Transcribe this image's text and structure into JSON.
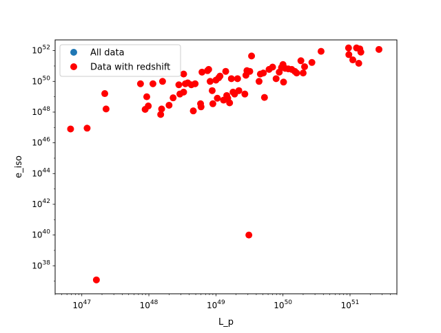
{
  "chart_data": {
    "type": "scatter",
    "title": "",
    "xlabel": "L_p",
    "ylabel": "e_iso",
    "xscale": "log",
    "yscale": "log",
    "xlim": [
      4e+46,
      5e+51
    ],
    "ylim": [
      1.5e+36,
      5e+52
    ],
    "grid": false,
    "legend_position": "top-left",
    "xticks": [
      {
        "value": 1e+47,
        "base": "10",
        "exp": "47"
      },
      {
        "value": 1e+48,
        "base": "10",
        "exp": "48"
      },
      {
        "value": 1e+49,
        "base": "10",
        "exp": "49"
      },
      {
        "value": 1e+50,
        "base": "10",
        "exp": "50"
      },
      {
        "value": 1e+51,
        "base": "10",
        "exp": "51"
      }
    ],
    "yticks": [
      {
        "value": 1e+38,
        "base": "10",
        "exp": "38"
      },
      {
        "value": 1e+40,
        "base": "10",
        "exp": "40"
      },
      {
        "value": 1e+42,
        "base": "10",
        "exp": "42"
      },
      {
        "value": 1e+44,
        "base": "10",
        "exp": "44"
      },
      {
        "value": 1e+46,
        "base": "10",
        "exp": "46"
      },
      {
        "value": 1e+48,
        "base": "10",
        "exp": "48"
      },
      {
        "value": 1e+50,
        "base": "10",
        "exp": "50"
      },
      {
        "value": 1e+52,
        "base": "10",
        "exp": "52"
      }
    ],
    "series": [
      {
        "name": "All data",
        "color": "#1f77b4",
        "points": []
      },
      {
        "name": "Data with redshift",
        "color": "#ff0000",
        "points": [
          [
            6.8e+46,
            8e+46
          ],
          [
            1.2e+47,
            9e+46
          ],
          [
            1.65e+47,
            1.2e+37
          ],
          [
            2.2e+47,
            1.6e+49
          ],
          [
            2.3e+47,
            1.6e+48
          ],
          [
            7.5e+47,
            7e+49
          ],
          [
            8.8e+47,
            1.5e+48
          ],
          [
            9.3e+47,
            1e+49
          ],
          [
            9.8e+47,
            2.5e+48
          ],
          [
            1.15e+48,
            7e+49
          ],
          [
            1.5e+48,
            7e+47
          ],
          [
            1.55e+48,
            1.6e+48
          ],
          [
            1.6e+48,
            1e+50
          ],
          [
            2e+48,
            2.8e+48
          ],
          [
            2.3e+48,
            8.5e+48
          ],
          [
            2.8e+48,
            6e+49
          ],
          [
            2.9e+48,
            1.5e+49
          ],
          [
            3.3e+48,
            3e+50
          ],
          [
            3.3e+48,
            2e+49
          ],
          [
            3.5e+48,
            7e+49
          ],
          [
            3.8e+48,
            8e+49
          ],
          [
            4.3e+48,
            6e+49
          ],
          [
            4.6e+48,
            1.2e+48
          ],
          [
            4.9e+48,
            7e+49
          ],
          [
            5.9e+48,
            3.5e+48
          ],
          [
            6e+48,
            2.2e+48
          ],
          [
            6.2e+48,
            4e+50
          ],
          [
            7.5e+48,
            5e+50
          ],
          [
            7.8e+48,
            6e+50
          ],
          [
            8.2e+48,
            1e+50
          ],
          [
            8.8e+48,
            2.5e+49
          ],
          [
            9e+48,
            3.5e+48
          ],
          [
            1e+49,
            1.2e+50
          ],
          [
            1.05e+49,
            8e+48
          ],
          [
            1.1e+49,
            1.7e+50
          ],
          [
            1.15e+49,
            2.2e+50
          ],
          [
            1.3e+49,
            6e+48
          ],
          [
            1.4e+49,
            4.5e+50
          ],
          [
            1.45e+49,
            1.2e+49
          ],
          [
            1.5e+49,
            8e+48
          ],
          [
            1.6e+49,
            4e+48
          ],
          [
            1.7e+49,
            1.5e+50
          ],
          [
            1.8e+49,
            2e+49
          ],
          [
            1.9e+49,
            1.5e+49
          ],
          [
            2.1e+49,
            1.5e+50
          ],
          [
            2.2e+49,
            2.5e+49
          ],
          [
            2.7e+49,
            1.5e+49
          ],
          [
            2.8e+49,
            2.5e+50
          ],
          [
            2.9e+49,
            5e+50
          ],
          [
            3.1e+49,
            1e+40
          ],
          [
            3.2e+49,
            4.5e+50
          ],
          [
            3.4e+49,
            4.5e+51
          ],
          [
            4.4e+49,
            1e+50
          ],
          [
            4.6e+49,
            3e+50
          ],
          [
            5.1e+49,
            3.5e+50
          ],
          [
            5.3e+49,
            9e+48
          ],
          [
            6.2e+49,
            6e+50
          ],
          [
            7e+49,
            8.5e+50
          ],
          [
            7.9e+49,
            1.5e+50
          ],
          [
            8.8e+49,
            4e+50
          ],
          [
            9.5e+49,
            8e+50
          ],
          [
            1e+50,
            1.25e+51
          ],
          [
            1.02e+50,
            9e+49
          ],
          [
            1.08e+50,
            7e+50
          ],
          [
            1.2e+50,
            6.5e+50
          ],
          [
            1.35e+50,
            6e+50
          ],
          [
            1.5e+50,
            4.5e+50
          ],
          [
            1.6e+50,
            3.5e+50
          ],
          [
            1.85e+50,
            2.2e+51
          ],
          [
            2e+50,
            3.5e+50
          ],
          [
            2.1e+50,
            9e+50
          ],
          [
            2.7e+50,
            1.7e+51
          ],
          [
            3.7e+50,
            9e+51
          ],
          [
            9.5e+50,
            1.5e+52
          ],
          [
            9.6e+50,
            5.5e+51
          ],
          [
            1.1e+51,
            2.5e+51
          ],
          [
            1.25e+51,
            1.5e+52
          ],
          [
            1.35e+51,
            1.5e+51
          ],
          [
            1.4e+51,
            1.3e+52
          ],
          [
            1.45e+51,
            8e+51
          ],
          [
            2.7e+51,
            1.2e+52
          ]
        ]
      }
    ]
  }
}
